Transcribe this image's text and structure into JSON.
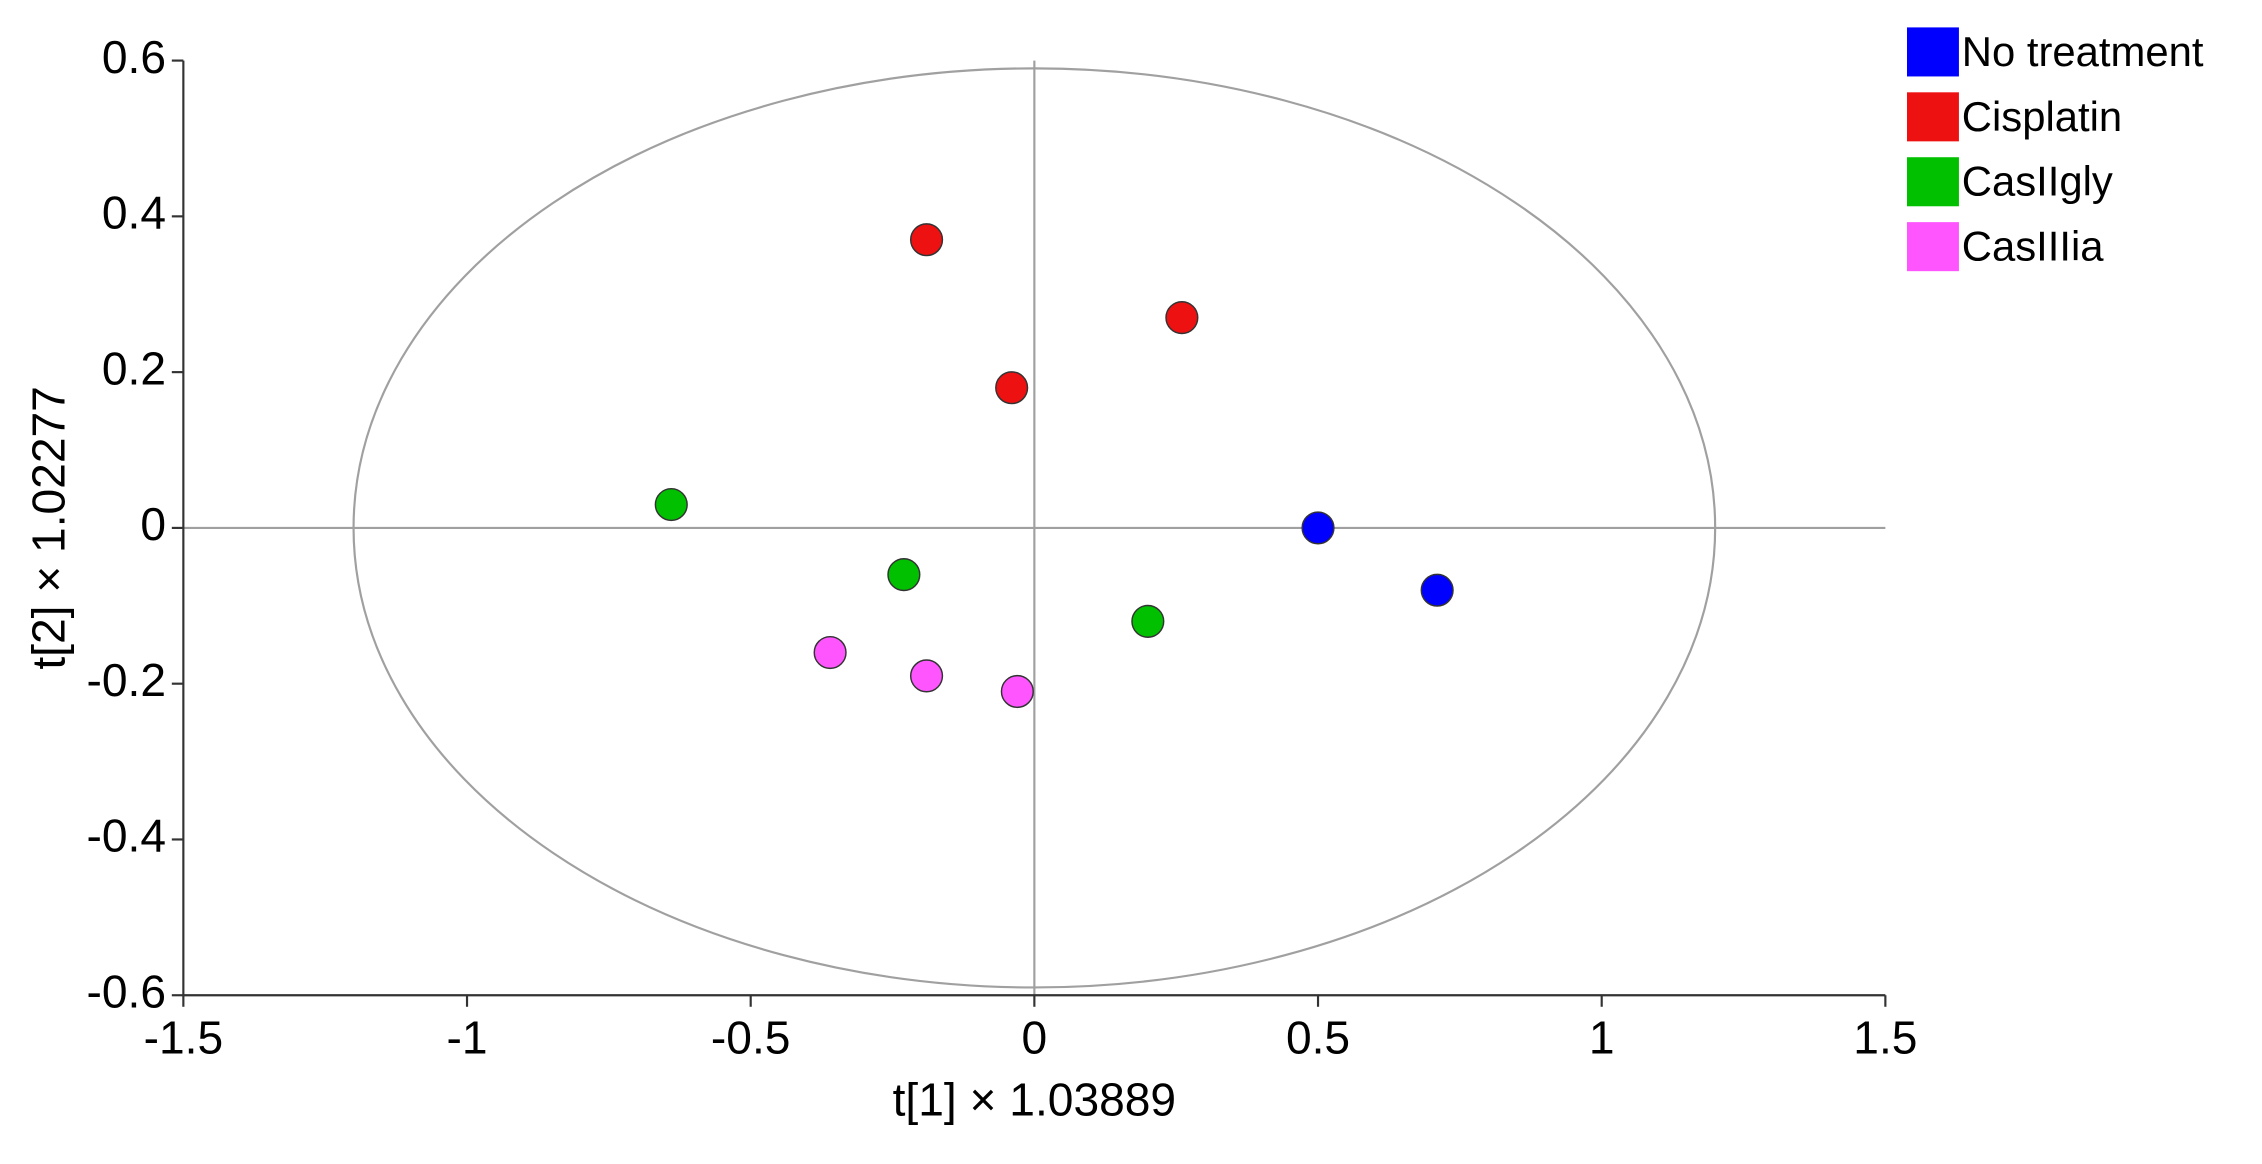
{
  "chart_data": {
    "type": "scatter",
    "x_label": "t[1] × 1.03889",
    "y_label": "t[2] × 1.02277",
    "xlim": [
      -1.5,
      1.5
    ],
    "xticks": [
      -1.5,
      -1,
      -0.5,
      0,
      0.5,
      1,
      1.5
    ],
    "ylim": [
      -0.6,
      0.6
    ],
    "yticks": [
      -0.6,
      -0.4,
      -0.2,
      0,
      0.2,
      0.4,
      0.6
    ],
    "ellipse": [
      1.2,
      0.59
    ],
    "legend": "top-right",
    "series": [
      {
        "name": "No treatment",
        "color": "#0000ff",
        "x": [
          0.5,
          0.71
        ],
        "values": [
          0.0,
          -0.08
        ]
      },
      {
        "name": "Cisplatin",
        "color": "#ee1111",
        "x": [
          -0.19,
          0.26,
          -0.04
        ],
        "values": [
          0.37,
          0.27,
          0.18
        ]
      },
      {
        "name": "CasIIgly",
        "color": "#00c000",
        "x": [
          -0.64,
          -0.23,
          0.2
        ],
        "values": [
          0.03,
          -0.06,
          -0.12
        ]
      },
      {
        "name": "CasIIIia",
        "color": "#ff55ff",
        "x": [
          -0.36,
          -0.19,
          -0.03
        ],
        "values": [
          -0.16,
          -0.19,
          -0.21
        ]
      }
    ]
  }
}
